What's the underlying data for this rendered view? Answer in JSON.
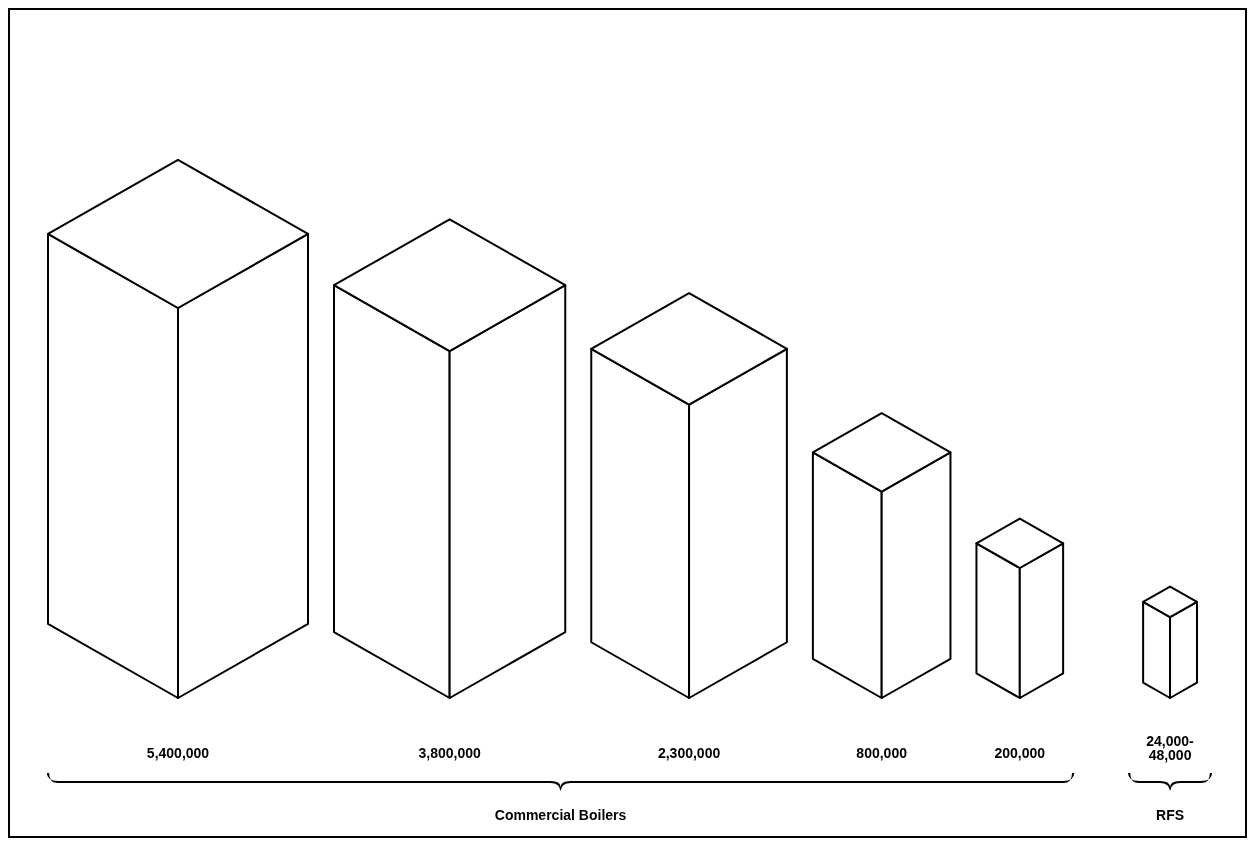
{
  "chart_data": {
    "type": "other",
    "categories": [
      null,
      null,
      null,
      null,
      null,
      null
    ],
    "values": [
      5400000,
      3800000,
      2300000,
      800000,
      200000,
      48000
    ],
    "value_labels": [
      "5,400,000",
      "3,800,000",
      "2,300,000",
      "800,000",
      "200,000",
      "24,000-\n48,000"
    ],
    "color": "#000000",
    "annotations": [
      "Commercial Boilers",
      "RFS"
    ]
  }
}
